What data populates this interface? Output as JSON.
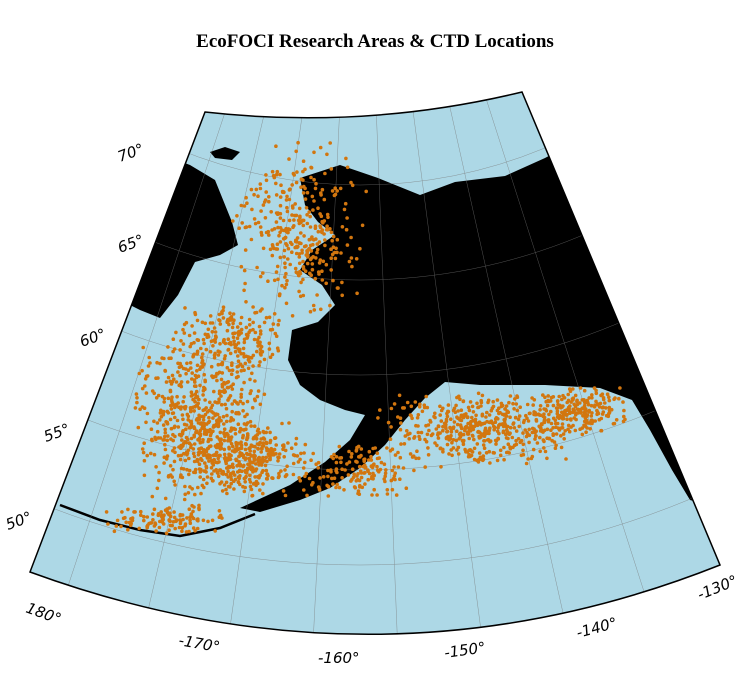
{
  "title": "EcoFOCI Research Areas & CTD Locations",
  "latitude_labels": [
    "70°",
    "65°",
    "60°",
    "55°",
    "50°"
  ],
  "longitude_labels": [
    "180°",
    "-170°",
    "-160°",
    "-150°",
    "-140°",
    "-130°"
  ]
}
